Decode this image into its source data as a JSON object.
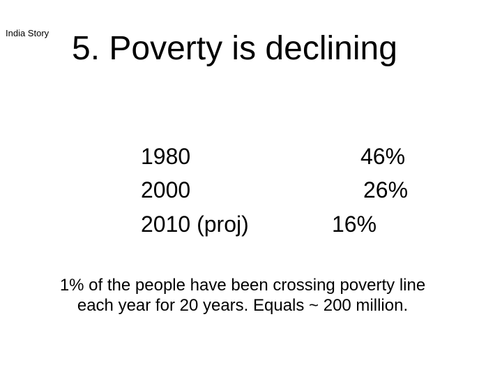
{
  "section_label": "India Story",
  "title": "5. Poverty is declining",
  "rows": [
    {
      "year": "1980",
      "value": "46%"
    },
    {
      "year": "2000",
      "value": "26%"
    },
    {
      "year": "2010 (proj)",
      "value": "16%"
    }
  ],
  "note": {
    "line1": "1% of the people have been crossing poverty line",
    "line2": "each year for 20 years. Equals ~ 200 million."
  }
}
